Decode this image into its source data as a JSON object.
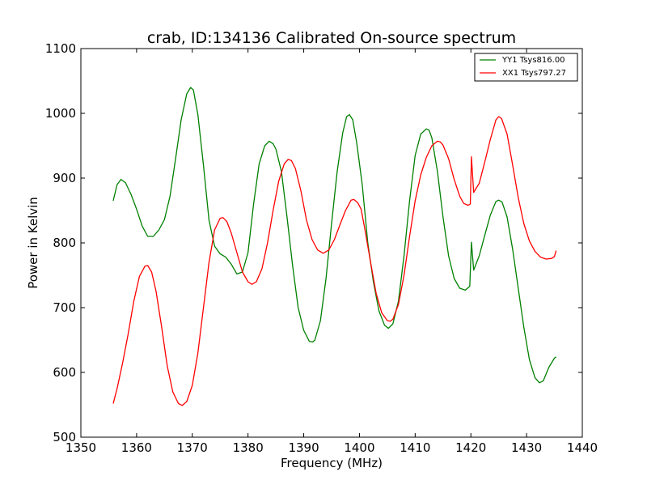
{
  "chart_data": {
    "type": "line",
    "title": "crab, ID:134136 Calibrated On-source spectrum",
    "xlabel": "Frequency (MHz)",
    "ylabel": "Power in Kelvin",
    "xlim": [
      1350,
      1440
    ],
    "ylim": [
      500,
      1100
    ],
    "xticks": [
      1350,
      1360,
      1370,
      1380,
      1390,
      1400,
      1410,
      1420,
      1430,
      1440
    ],
    "yticks": [
      500,
      600,
      700,
      800,
      900,
      1000,
      1100
    ],
    "grid": false,
    "legend_position": "top-right",
    "series": [
      {
        "name": "YY1 Tsys816.00",
        "color": "#008000",
        "points": [
          [
            1355.8,
            865
          ],
          [
            1356.5,
            890
          ],
          [
            1357.2,
            898
          ],
          [
            1358,
            893
          ],
          [
            1359,
            875
          ],
          [
            1360,
            852
          ],
          [
            1361,
            826
          ],
          [
            1362,
            810
          ],
          [
            1363,
            810
          ],
          [
            1364,
            820
          ],
          [
            1365,
            836
          ],
          [
            1366,
            872
          ],
          [
            1367,
            930
          ],
          [
            1368,
            990
          ],
          [
            1369,
            1030
          ],
          [
            1369.7,
            1040
          ],
          [
            1370.2,
            1036
          ],
          [
            1371,
            998
          ],
          [
            1372,
            920
          ],
          [
            1373,
            835
          ],
          [
            1374,
            795
          ],
          [
            1375,
            783
          ],
          [
            1376,
            778
          ],
          [
            1377,
            767
          ],
          [
            1378,
            752
          ],
          [
            1379,
            755
          ],
          [
            1380,
            785
          ],
          [
            1381,
            860
          ],
          [
            1382,
            922
          ],
          [
            1383,
            950
          ],
          [
            1383.8,
            957
          ],
          [
            1384.5,
            953
          ],
          [
            1385,
            945
          ],
          [
            1386,
            910
          ],
          [
            1387,
            840
          ],
          [
            1388,
            765
          ],
          [
            1389,
            700
          ],
          [
            1390,
            665
          ],
          [
            1391,
            648
          ],
          [
            1391.6,
            647
          ],
          [
            1392,
            650
          ],
          [
            1393,
            680
          ],
          [
            1394,
            745
          ],
          [
            1395,
            830
          ],
          [
            1396,
            910
          ],
          [
            1397,
            970
          ],
          [
            1397.7,
            995
          ],
          [
            1398.2,
            998
          ],
          [
            1398.8,
            990
          ],
          [
            1399.5,
            955
          ],
          [
            1400.5,
            890
          ],
          [
            1401.5,
            800
          ],
          [
            1402.5,
            740
          ],
          [
            1403.5,
            695
          ],
          [
            1404.5,
            673
          ],
          [
            1405.2,
            668
          ],
          [
            1406,
            675
          ],
          [
            1407,
            710
          ],
          [
            1408,
            780
          ],
          [
            1409,
            865
          ],
          [
            1410,
            935
          ],
          [
            1411,
            968
          ],
          [
            1412,
            976
          ],
          [
            1412.5,
            974
          ],
          [
            1413,
            962
          ],
          [
            1414,
            910
          ],
          [
            1415,
            840
          ],
          [
            1416,
            780
          ],
          [
            1417,
            745
          ],
          [
            1418,
            730
          ],
          [
            1419,
            727
          ],
          [
            1419.8,
            733
          ],
          [
            1420.1,
            801
          ],
          [
            1420.5,
            758
          ],
          [
            1421.5,
            780
          ],
          [
            1422.5,
            812
          ],
          [
            1423.5,
            843
          ],
          [
            1424.5,
            864
          ],
          [
            1425,
            866
          ],
          [
            1425.6,
            863
          ],
          [
            1426.5,
            840
          ],
          [
            1427.5,
            790
          ],
          [
            1428.5,
            730
          ],
          [
            1429.5,
            670
          ],
          [
            1430.5,
            620
          ],
          [
            1431.5,
            592
          ],
          [
            1432.3,
            584
          ],
          [
            1433,
            587
          ],
          [
            1434,
            608
          ],
          [
            1435,
            622
          ],
          [
            1435.3,
            624
          ]
        ]
      },
      {
        "name": "XX1 Tsys797.27",
        "color": "#ff0000",
        "points": [
          [
            1355.8,
            552
          ],
          [
            1356.5,
            575
          ],
          [
            1357.5,
            615
          ],
          [
            1358.5,
            660
          ],
          [
            1359.5,
            710
          ],
          [
            1360.5,
            748
          ],
          [
            1361.5,
            764
          ],
          [
            1362,
            765
          ],
          [
            1362.7,
            755
          ],
          [
            1363.5,
            725
          ],
          [
            1364.5,
            670
          ],
          [
            1365.5,
            610
          ],
          [
            1366.5,
            570
          ],
          [
            1367.5,
            552
          ],
          [
            1368.2,
            549
          ],
          [
            1369,
            555
          ],
          [
            1370,
            580
          ],
          [
            1371,
            630
          ],
          [
            1372,
            700
          ],
          [
            1373,
            770
          ],
          [
            1374,
            820
          ],
          [
            1375,
            838
          ],
          [
            1375.5,
            839
          ],
          [
            1376.2,
            833
          ],
          [
            1377,
            815
          ],
          [
            1378,
            785
          ],
          [
            1379,
            755
          ],
          [
            1380,
            740
          ],
          [
            1380.7,
            736
          ],
          [
            1381.5,
            740
          ],
          [
            1382.5,
            760
          ],
          [
            1383.5,
            800
          ],
          [
            1384.5,
            850
          ],
          [
            1385.5,
            895
          ],
          [
            1386.5,
            922
          ],
          [
            1387.2,
            929
          ],
          [
            1387.8,
            927
          ],
          [
            1388.5,
            915
          ],
          [
            1389.5,
            880
          ],
          [
            1390.5,
            835
          ],
          [
            1391.5,
            805
          ],
          [
            1392.5,
            789
          ],
          [
            1393.5,
            784
          ],
          [
            1394.5,
            789
          ],
          [
            1395.5,
            805
          ],
          [
            1396.5,
            828
          ],
          [
            1397.5,
            850
          ],
          [
            1398.5,
            866
          ],
          [
            1399,
            867
          ],
          [
            1399.7,
            862
          ],
          [
            1400.3,
            852
          ],
          [
            1401,
            820
          ],
          [
            1402,
            770
          ],
          [
            1403,
            722
          ],
          [
            1404,
            692
          ],
          [
            1405,
            680
          ],
          [
            1405.5,
            679
          ],
          [
            1406,
            682
          ],
          [
            1407,
            705
          ],
          [
            1408,
            750
          ],
          [
            1409,
            810
          ],
          [
            1410,
            865
          ],
          [
            1411,
            905
          ],
          [
            1412,
            932
          ],
          [
            1413,
            950
          ],
          [
            1414,
            957
          ],
          [
            1414.5,
            956
          ],
          [
            1415,
            951
          ],
          [
            1416,
            930
          ],
          [
            1417,
            898
          ],
          [
            1418,
            872
          ],
          [
            1418.7,
            861
          ],
          [
            1419.5,
            858
          ],
          [
            1419.9,
            860
          ],
          [
            1420.1,
            933
          ],
          [
            1420.5,
            878
          ],
          [
            1421.5,
            892
          ],
          [
            1422.5,
            925
          ],
          [
            1423.5,
            960
          ],
          [
            1424.5,
            990
          ],
          [
            1425,
            995
          ],
          [
            1425.5,
            992
          ],
          [
            1426.5,
            968
          ],
          [
            1427.5,
            920
          ],
          [
            1428.5,
            870
          ],
          [
            1429.5,
            830
          ],
          [
            1430.5,
            803
          ],
          [
            1431.5,
            787
          ],
          [
            1432.5,
            778
          ],
          [
            1433.5,
            775
          ],
          [
            1434.5,
            776
          ],
          [
            1435,
            779
          ],
          [
            1435.3,
            788
          ]
        ]
      }
    ]
  }
}
